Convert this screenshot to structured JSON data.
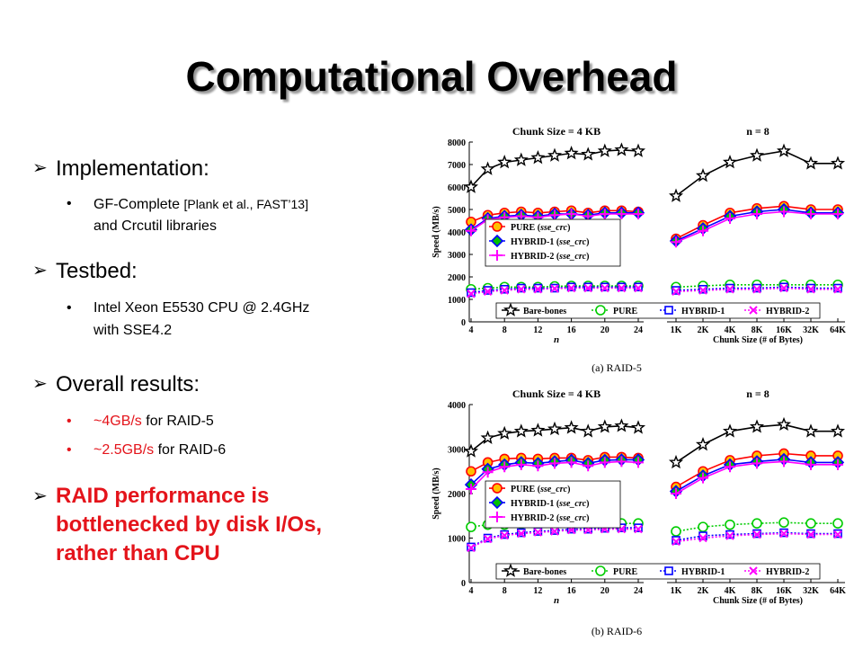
{
  "slide": {
    "title": "Computational Overhead",
    "bullets": {
      "implementation": {
        "heading": "Implementation:",
        "items": [
          {
            "line1": "GF-Complete ",
            "line1_small": "[Plank et al., FAST’13]",
            "line2": "and Crcutil libraries"
          }
        ]
      },
      "testbed": {
        "heading": "Testbed:",
        "items": [
          {
            "line1": "Intel Xeon E5530 CPU @ 2.4GHz",
            "line2": "with SSE4.2"
          }
        ]
      },
      "overall": {
        "heading": "Overall results:",
        "items": [
          {
            "value": "~4GB/s",
            "rest": " for RAID-5"
          },
          {
            "value": "~2.5GB/s",
            "rest": " for RAID-6"
          }
        ]
      },
      "conclusion": {
        "line1": "RAID performance is",
        "line2": "bottlenecked by disk I/Os,",
        "line3": "rather than CPU"
      }
    }
  },
  "colors": {
    "bare_bones": "#000000",
    "pure_fill": "#ffc000",
    "pure_edge": "#ff0000",
    "hybrid1": "#0000ff",
    "hybrid1_fill": "#00c000",
    "hybrid2": "#ff00ff",
    "pure_baseline": "#00cc00",
    "hybrid1_baseline": "#0000ff",
    "hybrid2_baseline": "#ff00ff",
    "highlight_red": "#e4141b"
  },
  "chart_data": [
    {
      "type": "line",
      "caption": "(a) RAID-5",
      "ylabel": "Speed (MB/s)",
      "ylim": [
        0,
        8000
      ],
      "yticks": [
        0,
        1000,
        2000,
        3000,
        4000,
        5000,
        6000,
        7000,
        8000
      ],
      "panels": [
        {
          "title": "Chunk Size = 4 KB",
          "xlabel": "n",
          "x": [
            4,
            6,
            8,
            10,
            12,
            14,
            16,
            18,
            20,
            22,
            24
          ],
          "xticks": [
            "4",
            "8",
            "12",
            "16",
            "20",
            "24"
          ],
          "series": [
            {
              "name": "Bare-bones",
              "values": [
                6000,
                6800,
                7100,
                7200,
                7300,
                7400,
                7500,
                7450,
                7600,
                7650,
                7600
              ]
            },
            {
              "name": "PURE (sse_crc)",
              "values": [
                4450,
                4750,
                4850,
                4900,
                4850,
                4900,
                4950,
                4850,
                4950,
                4950,
                4900
              ]
            },
            {
              "name": "HYBRID-1 (sse_crc)",
              "values": [
                4100,
                4600,
                4700,
                4750,
                4700,
                4800,
                4800,
                4750,
                4850,
                4850,
                4850
              ]
            },
            {
              "name": "HYBRID-2 (sse_crc)",
              "values": [
                4050,
                4550,
                4650,
                4700,
                4650,
                4750,
                4800,
                4700,
                4800,
                4800,
                4800
              ]
            },
            {
              "name": "PURE",
              "values": [
                1450,
                1500,
                1550,
                1550,
                1550,
                1580,
                1600,
                1600,
                1600,
                1600,
                1600
              ]
            },
            {
              "name": "HYBRID-1",
              "values": [
                1300,
                1400,
                1450,
                1500,
                1500,
                1500,
                1550,
                1550,
                1550,
                1550,
                1550
              ]
            },
            {
              "name": "HYBRID-2",
              "values": [
                1250,
                1350,
                1400,
                1450,
                1450,
                1480,
                1500,
                1500,
                1500,
                1500,
                1500
              ]
            }
          ]
        },
        {
          "title": "n = 8",
          "xlabel": "Chunk Size (# of Bytes)",
          "x": [
            "1K",
            "2K",
            "4K",
            "8K",
            "16K",
            "32K",
            "64K"
          ],
          "xticks": [
            "1K",
            "2K",
            "4K",
            "8K",
            "16K",
            "32K",
            "64K"
          ],
          "series": [
            {
              "name": "Bare-bones",
              "values": [
                5600,
                6500,
                7100,
                7400,
                7600,
                7050,
                7050
              ]
            },
            {
              "name": "PURE (sse_crc)",
              "values": [
                3700,
                4300,
                4850,
                5050,
                5150,
                5000,
                5000
              ]
            },
            {
              "name": "HYBRID-1 (sse_crc)",
              "values": [
                3600,
                4150,
                4700,
                4900,
                5000,
                4850,
                4850
              ]
            },
            {
              "name": "HYBRID-2 (sse_crc)",
              "values": [
                3550,
                4050,
                4600,
                4800,
                4900,
                4800,
                4800
              ]
            },
            {
              "name": "PURE",
              "values": [
                1550,
                1600,
                1650,
                1650,
                1650,
                1650,
                1650
              ]
            },
            {
              "name": "HYBRID-1",
              "values": [
                1400,
                1450,
                1500,
                1500,
                1550,
                1500,
                1500
              ]
            },
            {
              "name": "HYBRID-2",
              "values": [
                1350,
                1400,
                1450,
                1450,
                1500,
                1450,
                1450
              ]
            }
          ]
        }
      ]
    },
    {
      "type": "line",
      "caption": "(b) RAID-6",
      "ylabel": "Speed (MB/s)",
      "ylim": [
        0,
        4000
      ],
      "yticks": [
        0,
        1000,
        2000,
        3000,
        4000
      ],
      "panels": [
        {
          "title": "Chunk Size = 4 KB",
          "xlabel": "n",
          "x": [
            4,
            6,
            8,
            10,
            12,
            14,
            16,
            18,
            20,
            22,
            24
          ],
          "xticks": [
            "4",
            "8",
            "12",
            "16",
            "20",
            "24"
          ],
          "series": [
            {
              "name": "Bare-bones",
              "values": [
                2950,
                3250,
                3350,
                3400,
                3420,
                3450,
                3480,
                3400,
                3500,
                3520,
                3480
              ]
            },
            {
              "name": "PURE (sse_crc)",
              "values": [
                2500,
                2700,
                2780,
                2800,
                2780,
                2800,
                2800,
                2750,
                2820,
                2820,
                2800
              ]
            },
            {
              "name": "HYBRID-1 (sse_crc)",
              "values": [
                2200,
                2550,
                2650,
                2700,
                2680,
                2720,
                2750,
                2680,
                2750,
                2760,
                2760
              ]
            },
            {
              "name": "HYBRID-2 (sse_crc)",
              "values": [
                2100,
                2480,
                2600,
                2650,
                2620,
                2680,
                2700,
                2620,
                2700,
                2720,
                2700
              ]
            },
            {
              "name": "PURE",
              "values": [
                1250,
                1300,
                1300,
                1320,
                1320,
                1320,
                1330,
                1330,
                1330,
                1330,
                1330
              ]
            },
            {
              "name": "HYBRID-1",
              "values": [
                800,
                1000,
                1080,
                1120,
                1150,
                1170,
                1200,
                1200,
                1220,
                1230,
                1230
              ]
            },
            {
              "name": "HYBRID-2",
              "values": [
                780,
                980,
                1060,
                1100,
                1130,
                1150,
                1180,
                1180,
                1200,
                1200,
                1200
              ]
            }
          ]
        },
        {
          "title": "n = 8",
          "xlabel": "Chunk Size (# of Bytes)",
          "x": [
            "1K",
            "2K",
            "4K",
            "8K",
            "16K",
            "32K",
            "64K"
          ],
          "xticks": [
            "1K",
            "2K",
            "4K",
            "8K",
            "16K",
            "32K",
            "64K"
          ],
          "series": [
            {
              "name": "Bare-bones",
              "values": [
                2700,
                3100,
                3400,
                3500,
                3550,
                3400,
                3400
              ]
            },
            {
              "name": "PURE (sse_crc)",
              "values": [
                2150,
                2500,
                2750,
                2850,
                2900,
                2850,
                2850
              ]
            },
            {
              "name": "HYBRID-1 (sse_crc)",
              "values": [
                2050,
                2400,
                2650,
                2720,
                2770,
                2700,
                2700
              ]
            },
            {
              "name": "HYBRID-2 (sse_crc)",
              "values": [
                2000,
                2350,
                2600,
                2680,
                2720,
                2650,
                2650
              ]
            },
            {
              "name": "PURE",
              "values": [
                1150,
                1250,
                1300,
                1330,
                1350,
                1330,
                1330
              ]
            },
            {
              "name": "HYBRID-1",
              "values": [
                950,
                1050,
                1080,
                1100,
                1120,
                1100,
                1100
              ]
            },
            {
              "name": "HYBRID-2",
              "values": [
                920,
                1000,
                1050,
                1080,
                1100,
                1080,
                1080
              ]
            }
          ]
        }
      ]
    }
  ]
}
